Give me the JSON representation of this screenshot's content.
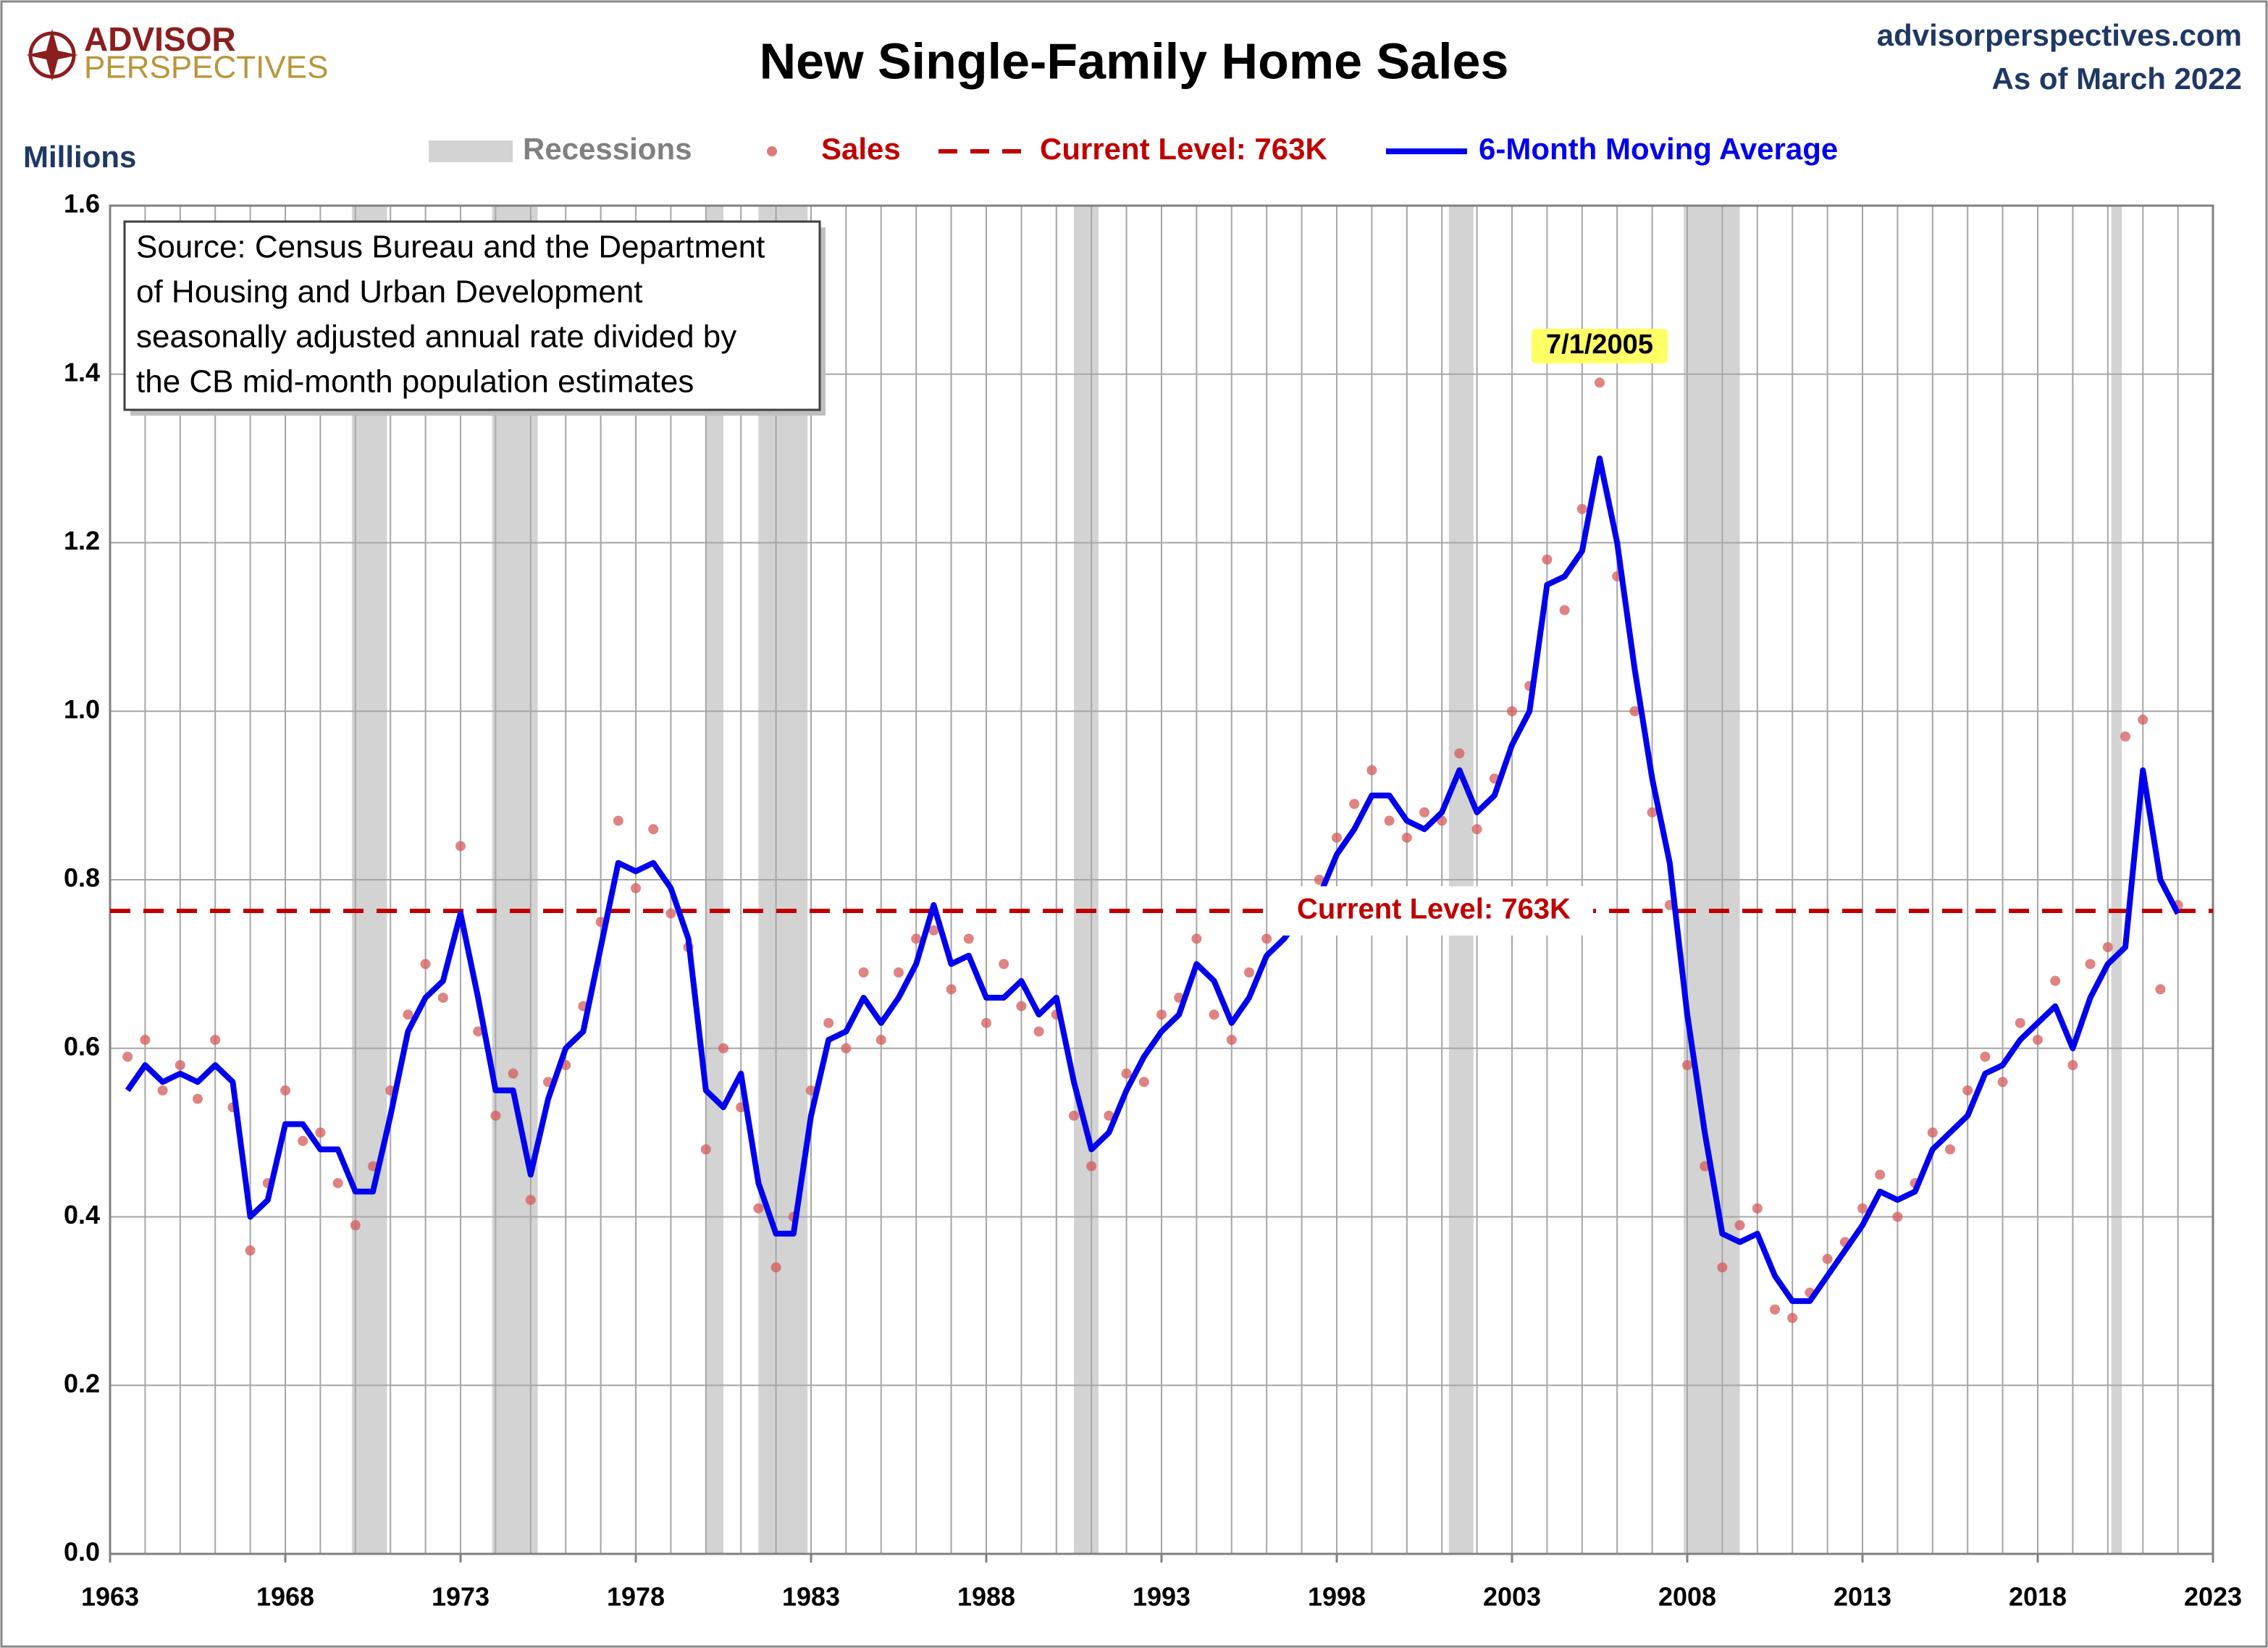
{
  "chart_data": {
    "type": "scatter_line",
    "title": "New Single-Family Home Sales",
    "logo": [
      "ADVISOR",
      "PERSPECTIVES"
    ],
    "site": "advisorperspectives.com",
    "as_of": "As of March 2022",
    "y_label": "Millions",
    "source": [
      "Source: Census Bureau and the Department",
      "of Housing and Urban Development",
      "seasonally adjusted annual rate divided by",
      "the CB mid-month population estimates"
    ],
    "xlim": [
      1963,
      2023
    ],
    "xticks": [
      1963,
      1968,
      1973,
      1978,
      1983,
      1988,
      1993,
      1998,
      2003,
      2008,
      2013,
      2018,
      2023
    ],
    "xgrid": [
      1964,
      1965,
      1966,
      1967,
      1968,
      1969,
      1970,
      1971,
      1972,
      1973,
      1974,
      1975,
      1976,
      1977,
      1978,
      1979,
      1980,
      1981,
      1982,
      1983,
      1984,
      1985,
      1986,
      1987,
      1988,
      1989,
      1990,
      1991,
      1992,
      1993,
      1994,
      1995,
      1996,
      1997,
      1998,
      1999,
      2000,
      2001,
      2002,
      2003,
      2004,
      2005,
      2006,
      2007,
      2008,
      2009,
      2010,
      2011,
      2012,
      2013,
      2014,
      2015,
      2016,
      2017,
      2018,
      2019,
      2020,
      2021,
      2022
    ],
    "ylim": [
      0,
      1.6
    ],
    "yticks": [
      {
        "value": 0,
        "label": "0.0"
      },
      0.2,
      0.4,
      0.6,
      0.8,
      {
        "value": 1,
        "label": "1.0"
      },
      1.2,
      1.4,
      1.6
    ],
    "grid": true,
    "recessions": {
      "name": "Recessions",
      "color": "#d3d3d3",
      "ranges": [
        [
          1969.9,
          1970.9
        ],
        [
          1973.9,
          1975.2
        ],
        [
          1980.0,
          1980.5
        ],
        [
          1981.5,
          1982.9
        ],
        [
          1990.5,
          1991.2
        ],
        [
          2001.2,
          2001.9
        ],
        [
          2007.9,
          2009.5
        ],
        [
          2020.1,
          2020.4
        ]
      ]
    },
    "current_level": {
      "value": 0.763,
      "label": "Current Level: 763K",
      "color": "#c00000"
    },
    "peak_annotation": {
      "x": 2005.5,
      "label": "7/1/2005"
    },
    "x": [
      1963.5,
      1964,
      1964.5,
      1965,
      1965.5,
      1966,
      1966.5,
      1967,
      1967.5,
      1968,
      1968.5,
      1969,
      1969.5,
      1970,
      1970.5,
      1971,
      1971.5,
      1972,
      1972.5,
      1973,
      1973.5,
      1974,
      1974.5,
      1975,
      1975.5,
      1976,
      1976.5,
      1977,
      1977.5,
      1978,
      1978.5,
      1979,
      1979.5,
      1980,
      1980.5,
      1981,
      1981.5,
      1982,
      1982.5,
      1983,
      1983.5,
      1984,
      1984.5,
      1985,
      1985.5,
      1986,
      1986.5,
      1987,
      1987.5,
      1988,
      1988.5,
      1989,
      1989.5,
      1990,
      1990.5,
      1991,
      1991.5,
      1992,
      1992.5,
      1993,
      1993.5,
      1994,
      1994.5,
      1995,
      1995.5,
      1996,
      1996.5,
      1997,
      1997.5,
      1998,
      1998.5,
      1999,
      1999.5,
      2000,
      2000.5,
      2001,
      2001.5,
      2002,
      2002.5,
      2003,
      2003.5,
      2004,
      2004.5,
      2005,
      2005.5,
      2006,
      2006.5,
      2007,
      2007.5,
      2008,
      2008.5,
      2009,
      2009.5,
      2010,
      2010.5,
      2011,
      2011.5,
      2012,
      2012.5,
      2013,
      2013.5,
      2014,
      2014.5,
      2015,
      2015.5,
      2016,
      2016.5,
      2017,
      2017.5,
      2018,
      2018.5,
      2019,
      2019.5,
      2020,
      2020.5,
      2021,
      2021.5,
      2022
    ],
    "series": [
      {
        "name": "Sales",
        "kind": "scatter",
        "color": "#d45a5a",
        "values": [
          0.59,
          0.61,
          0.55,
          0.58,
          0.54,
          0.61,
          0.53,
          0.36,
          0.44,
          0.55,
          0.49,
          0.5,
          0.44,
          0.39,
          0.46,
          0.55,
          0.64,
          0.7,
          0.66,
          0.84,
          0.62,
          0.52,
          0.57,
          0.42,
          0.56,
          0.58,
          0.65,
          0.75,
          0.87,
          0.79,
          0.86,
          0.76,
          0.72,
          0.48,
          0.6,
          0.53,
          0.41,
          0.34,
          0.4,
          0.55,
          0.63,
          0.6,
          0.69,
          0.61,
          0.69,
          0.73,
          0.74,
          0.67,
          0.73,
          0.63,
          0.7,
          0.65,
          0.62,
          0.64,
          0.52,
          0.46,
          0.52,
          0.57,
          0.56,
          0.64,
          0.66,
          0.73,
          0.64,
          0.61,
          0.69,
          0.73,
          0.75,
          0.77,
          0.8,
          0.85,
          0.89,
          0.93,
          0.87,
          0.85,
          0.88,
          0.87,
          0.95,
          0.86,
          0.92,
          1.0,
          1.03,
          1.18,
          1.12,
          1.24,
          1.39,
          1.16,
          1.0,
          0.88,
          0.77,
          0.58,
          0.46,
          0.34,
          0.39,
          0.41,
          0.29,
          0.28,
          0.31,
          0.35,
          0.37,
          0.41,
          0.45,
          0.4,
          0.44,
          0.5,
          0.48,
          0.55,
          0.59,
          0.56,
          0.63,
          0.61,
          0.68,
          0.58,
          0.7,
          0.72,
          0.97,
          0.99,
          0.67,
          0.77
        ]
      },
      {
        "name": "6-Month Moving Average",
        "kind": "line",
        "color": "#0000ee",
        "values": [
          0.55,
          0.58,
          0.56,
          0.57,
          0.56,
          0.58,
          0.56,
          0.4,
          0.42,
          0.51,
          0.51,
          0.48,
          0.48,
          0.43,
          0.43,
          0.52,
          0.62,
          0.66,
          0.68,
          0.76,
          0.66,
          0.55,
          0.55,
          0.45,
          0.54,
          0.6,
          0.62,
          0.72,
          0.82,
          0.81,
          0.82,
          0.79,
          0.73,
          0.55,
          0.53,
          0.57,
          0.44,
          0.38,
          0.38,
          0.52,
          0.61,
          0.62,
          0.66,
          0.63,
          0.66,
          0.7,
          0.77,
          0.7,
          0.71,
          0.66,
          0.66,
          0.68,
          0.64,
          0.66,
          0.56,
          0.48,
          0.5,
          0.55,
          0.59,
          0.62,
          0.64,
          0.7,
          0.68,
          0.63,
          0.66,
          0.71,
          0.73,
          0.76,
          0.78,
          0.83,
          0.86,
          0.9,
          0.9,
          0.87,
          0.86,
          0.88,
          0.93,
          0.88,
          0.9,
          0.96,
          1.0,
          1.15,
          1.16,
          1.19,
          1.3,
          1.2,
          1.05,
          0.92,
          0.82,
          0.64,
          0.5,
          0.38,
          0.37,
          0.38,
          0.33,
          0.3,
          0.3,
          0.33,
          0.36,
          0.39,
          0.43,
          0.42,
          0.43,
          0.48,
          0.5,
          0.52,
          0.57,
          0.58,
          0.61,
          0.63,
          0.65,
          0.6,
          0.66,
          0.7,
          0.72,
          0.93,
          0.8,
          0.76
        ]
      }
    ]
  }
}
